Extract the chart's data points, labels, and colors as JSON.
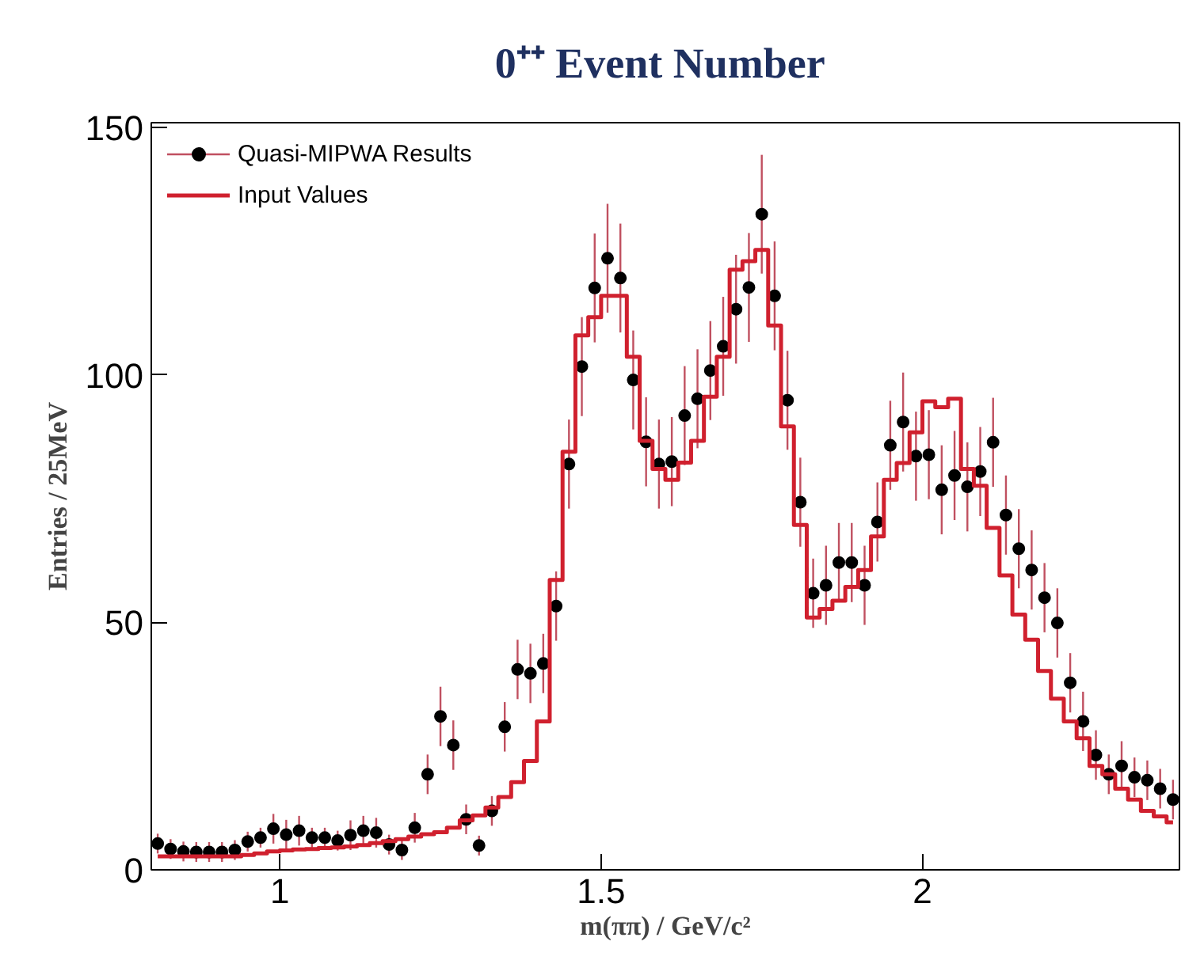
{
  "chart_data": {
    "type": "scatter",
    "title": "0⁺⁺  Event Number",
    "xlabel": "m(ππ) / GeV/c²",
    "ylabel": "Entries / 25MeV",
    "xlim": [
      0.8,
      2.4
    ],
    "ylim": [
      0,
      151
    ],
    "xticks": [
      1,
      1.5,
      2
    ],
    "yticks": [
      0,
      50,
      100,
      150
    ],
    "grid": false,
    "legend": "top left",
    "series": [
      {
        "name": "Quasi-MIPWA Results",
        "marker": "circle",
        "color": "#000000",
        "x": [
          0.81,
          0.83,
          0.85,
          0.87,
          0.89,
          0.91,
          0.93,
          0.95,
          0.97,
          0.99,
          1.01,
          1.03,
          1.05,
          1.07,
          1.09,
          1.11,
          1.13,
          1.15,
          1.17,
          1.19,
          1.21,
          1.23,
          1.25,
          1.27,
          1.29,
          1.31,
          1.33,
          1.35,
          1.37,
          1.39,
          1.41,
          1.43,
          1.45,
          1.47,
          1.49,
          1.51,
          1.53,
          1.55,
          1.57,
          1.59,
          1.61,
          1.63,
          1.65,
          1.67,
          1.69,
          1.71,
          1.73,
          1.75,
          1.77,
          1.79,
          1.81,
          1.83,
          1.85,
          1.87,
          1.89,
          1.91,
          1.93,
          1.95,
          1.97,
          1.99,
          2.01,
          2.03,
          2.05,
          2.07,
          2.09,
          2.11,
          2.13,
          2.15,
          2.17,
          2.19,
          2.21,
          2.23,
          2.25,
          2.27,
          2.29,
          2.31,
          2.33,
          2.35,
          2.37,
          2.39
        ],
        "values": [
          5.3,
          4.2,
          3.7,
          3.6,
          3.6,
          3.6,
          4.0,
          5.7,
          6.5,
          8.3,
          7.1,
          7.9,
          6.5,
          6.5,
          5.9,
          7.0,
          7.9,
          7.5,
          5.1,
          4.0,
          8.5,
          19.3,
          31,
          25.2,
          10.2,
          4.9,
          11.9,
          28.9,
          40.5,
          39.7,
          41.7,
          53.3,
          82,
          101.7,
          117.6,
          123.6,
          119.6,
          99,
          86.5,
          82,
          82.5,
          91.8,
          95.2,
          100.9,
          105.8,
          113.3,
          117.7,
          132.5,
          116,
          94.9,
          74.3,
          55.9,
          57.5,
          62.1,
          62.1,
          57.5,
          70.3,
          85.8,
          90.5,
          83.6,
          83.9,
          76.8,
          79.7,
          77.4,
          80.5,
          86.4,
          71.7,
          64.9,
          60.6,
          55,
          49.9,
          37.8,
          30,
          23.2,
          19.3,
          21,
          18.7,
          18.1,
          16.4,
          14.2
        ],
        "errors": [
          2,
          2,
          2,
          2,
          2,
          2,
          2,
          2,
          2,
          3,
          3,
          3,
          2,
          2,
          2,
          3,
          3,
          3,
          2,
          2,
          3,
          4,
          6,
          5,
          3,
          2,
          3,
          5,
          6,
          6,
          6,
          7,
          9,
          10,
          11,
          11,
          11,
          10,
          9,
          9,
          9,
          10,
          10,
          10,
          10,
          11,
          11,
          12,
          11,
          10,
          9,
          7,
          8,
          8,
          8,
          8,
          8,
          9,
          10,
          9,
          9,
          9,
          9,
          9,
          9,
          9,
          8,
          8,
          8,
          7,
          7,
          6,
          6,
          5,
          4,
          5,
          4,
          4,
          4,
          4
        ]
      },
      {
        "name": "Input Values",
        "type": "step",
        "color": "#d0202e",
        "x": [
          0.81,
          0.83,
          0.85,
          0.87,
          0.89,
          0.91,
          0.93,
          0.95,
          0.97,
          0.99,
          1.01,
          1.03,
          1.05,
          1.07,
          1.09,
          1.11,
          1.13,
          1.15,
          1.17,
          1.19,
          1.21,
          1.23,
          1.25,
          1.27,
          1.29,
          1.31,
          1.33,
          1.35,
          1.37,
          1.39,
          1.41,
          1.43,
          1.45,
          1.47,
          1.49,
          1.51,
          1.53,
          1.55,
          1.57,
          1.59,
          1.61,
          1.63,
          1.65,
          1.67,
          1.69,
          1.71,
          1.73,
          1.75,
          1.77,
          1.79,
          1.81,
          1.83,
          1.85,
          1.87,
          1.89,
          1.91,
          1.93,
          1.95,
          1.97,
          1.99,
          2.01,
          2.03,
          2.05,
          2.07,
          2.09,
          2.11,
          2.13,
          2.15,
          2.17,
          2.19,
          2.21,
          2.23,
          2.25,
          2.27,
          2.29,
          2.31,
          2.33,
          2.35,
          2.37,
          2.39
        ],
        "values": [
          2.7,
          2.7,
          2.7,
          2.7,
          2.7,
          2.7,
          2.7,
          3,
          3.3,
          3.7,
          3.9,
          4.1,
          4.2,
          4.4,
          4.5,
          4.7,
          5,
          5.4,
          5.8,
          6.2,
          6.7,
          7.2,
          7.6,
          8.5,
          10,
          11,
          12.6,
          14.7,
          17.7,
          22,
          30,
          58.6,
          84.5,
          108,
          111.7,
          116,
          116,
          103.7,
          86.7,
          81,
          78.8,
          82.3,
          86.7,
          95.6,
          103.7,
          121.3,
          123,
          125.3,
          110,
          89.6,
          69.7,
          51,
          52.7,
          54.4,
          57.2,
          60.6,
          67.4,
          78.8,
          82.2,
          88.4,
          94.7,
          93.5,
          95.2,
          81,
          77.6,
          69.1,
          59.5,
          51.6,
          46.5,
          40.2,
          34.6,
          30,
          26.6,
          21,
          19.3,
          16.4,
          14.2,
          11.9,
          10.8,
          9.6
        ]
      }
    ]
  }
}
